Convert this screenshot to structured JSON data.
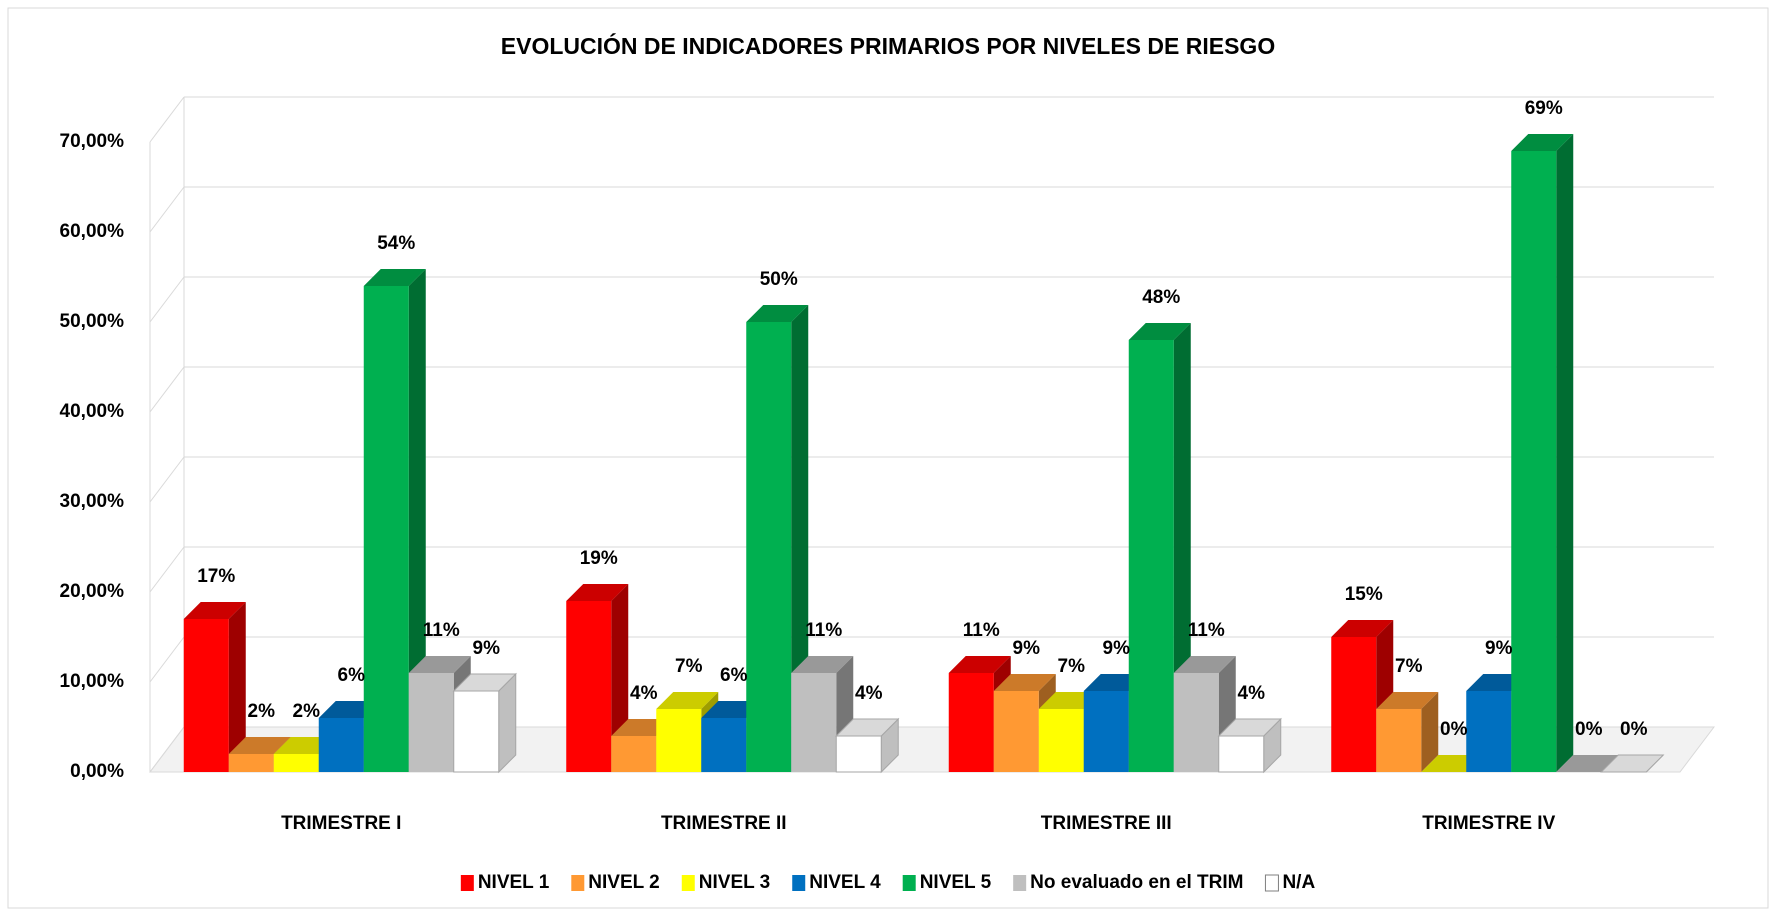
{
  "chart_data": {
    "type": "bar3d",
    "title": "EVOLUCIÓN DE INDICADORES PRIMARIOS POR NIVELES DE RIESGO",
    "categories": [
      "TRIMESTRE I",
      "TRIMESTRE II",
      "TRIMESTRE III",
      "TRIMESTRE IV"
    ],
    "series": [
      {
        "name": "NIVEL 1",
        "color": "#ff0000",
        "values": [
          17,
          19,
          11,
          15
        ],
        "value_labels": [
          "17%",
          "19%",
          "11%",
          "15%"
        ]
      },
      {
        "name": "NIVEL 2",
        "color": "#ff9933",
        "values": [
          2,
          4,
          9,
          7
        ],
        "value_labels": [
          "2%",
          "4%",
          "9%",
          "7%"
        ]
      },
      {
        "name": "NIVEL 3",
        "color": "#ffff00",
        "values": [
          2,
          7,
          7,
          0
        ],
        "value_labels": [
          "2%",
          "7%",
          "7%",
          "0%"
        ]
      },
      {
        "name": "NIVEL 4",
        "color": "#0070c0",
        "values": [
          6,
          6,
          9,
          9
        ],
        "value_labels": [
          "6%",
          "6%",
          "9%",
          "9%"
        ]
      },
      {
        "name": "NIVEL 5",
        "color": "#00b050",
        "values": [
          54,
          50,
          48,
          69
        ],
        "value_labels": [
          "54%",
          "50%",
          "48%",
          "69%"
        ]
      },
      {
        "name": "No evaluado en el TRIM",
        "color": "#bfbfbf",
        "values": [
          11,
          11,
          11,
          0
        ],
        "value_labels": [
          "11%",
          "11%",
          "11%",
          "0%"
        ]
      },
      {
        "name": "N/A",
        "color": "#ffffff",
        "values": [
          9,
          4,
          4,
          0
        ],
        "value_labels": [
          "9%",
          "4%",
          "4%",
          "0%"
        ]
      }
    ],
    "ylim": [
      0,
      70
    ],
    "yticks": [
      {
        "value": 0,
        "label": "0,00%"
      },
      {
        "value": 10,
        "label": "10,00%"
      },
      {
        "value": 20,
        "label": "20,00%"
      },
      {
        "value": 30,
        "label": "30,00%"
      },
      {
        "value": 40,
        "label": "40,00%"
      },
      {
        "value": 50,
        "label": "50,00%"
      },
      {
        "value": 60,
        "label": "60,00%"
      },
      {
        "value": 70,
        "label": "70,00%"
      }
    ],
    "grid": true,
    "legend": "bottom"
  }
}
